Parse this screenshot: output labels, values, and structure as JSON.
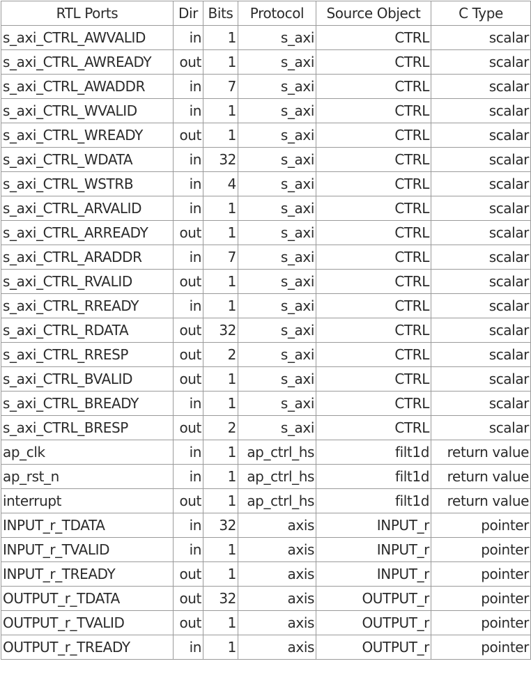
{
  "table": {
    "headers": [
      "RTL Ports",
      "Dir",
      "Bits",
      "Protocol",
      "Source Object",
      "C Type"
    ],
    "rows": [
      [
        "s_axi_CTRL_AWVALID",
        "in",
        "1",
        "s_axi",
        "CTRL",
        "scalar"
      ],
      [
        "s_axi_CTRL_AWREADY",
        "out",
        "1",
        "s_axi",
        "CTRL",
        "scalar"
      ],
      [
        "s_axi_CTRL_AWADDR",
        "in",
        "7",
        "s_axi",
        "CTRL",
        "scalar"
      ],
      [
        "s_axi_CTRL_WVALID",
        "in",
        "1",
        "s_axi",
        "CTRL",
        "scalar"
      ],
      [
        "s_axi_CTRL_WREADY",
        "out",
        "1",
        "s_axi",
        "CTRL",
        "scalar"
      ],
      [
        "s_axi_CTRL_WDATA",
        "in",
        "32",
        "s_axi",
        "CTRL",
        "scalar"
      ],
      [
        "s_axi_CTRL_WSTRB",
        "in",
        "4",
        "s_axi",
        "CTRL",
        "scalar"
      ],
      [
        "s_axi_CTRL_ARVALID",
        "in",
        "1",
        "s_axi",
        "CTRL",
        "scalar"
      ],
      [
        "s_axi_CTRL_ARREADY",
        "out",
        "1",
        "s_axi",
        "CTRL",
        "scalar"
      ],
      [
        "s_axi_CTRL_ARADDR",
        "in",
        "7",
        "s_axi",
        "CTRL",
        "scalar"
      ],
      [
        "s_axi_CTRL_RVALID",
        "out",
        "1",
        "s_axi",
        "CTRL",
        "scalar"
      ],
      [
        "s_axi_CTRL_RREADY",
        "in",
        "1",
        "s_axi",
        "CTRL",
        "scalar"
      ],
      [
        "s_axi_CTRL_RDATA",
        "out",
        "32",
        "s_axi",
        "CTRL",
        "scalar"
      ],
      [
        "s_axi_CTRL_RRESP",
        "out",
        "2",
        "s_axi",
        "CTRL",
        "scalar"
      ],
      [
        "s_axi_CTRL_BVALID",
        "out",
        "1",
        "s_axi",
        "CTRL",
        "scalar"
      ],
      [
        "s_axi_CTRL_BREADY",
        "in",
        "1",
        "s_axi",
        "CTRL",
        "scalar"
      ],
      [
        "s_axi_CTRL_BRESP",
        "out",
        "2",
        "s_axi",
        "CTRL",
        "scalar"
      ],
      [
        "ap_clk",
        "in",
        "1",
        "ap_ctrl_hs",
        "filt1d",
        "return value"
      ],
      [
        "ap_rst_n",
        "in",
        "1",
        "ap_ctrl_hs",
        "filt1d",
        "return value"
      ],
      [
        "interrupt",
        "out",
        "1",
        "ap_ctrl_hs",
        "filt1d",
        "return value"
      ],
      [
        "INPUT_r_TDATA",
        "in",
        "32",
        "axis",
        "INPUT_r",
        "pointer"
      ],
      [
        "INPUT_r_TVALID",
        "in",
        "1",
        "axis",
        "INPUT_r",
        "pointer"
      ],
      [
        "INPUT_r_TREADY",
        "out",
        "1",
        "axis",
        "INPUT_r",
        "pointer"
      ],
      [
        "OUTPUT_r_TDATA",
        "out",
        "32",
        "axis",
        "OUTPUT_r",
        "pointer"
      ],
      [
        "OUTPUT_r_TVALID",
        "out",
        "1",
        "axis",
        "OUTPUT_r",
        "pointer"
      ],
      [
        "OUTPUT_r_TREADY",
        "in",
        "1",
        "axis",
        "OUTPUT_r",
        "pointer"
      ]
    ]
  }
}
